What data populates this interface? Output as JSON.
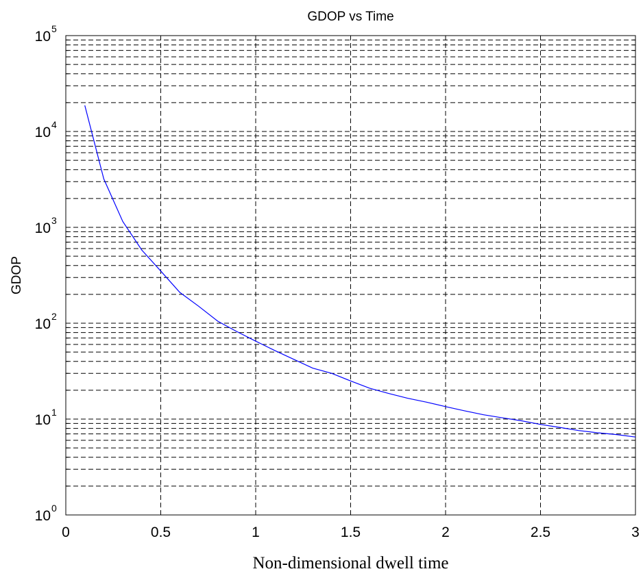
{
  "chart_data": {
    "type": "line",
    "title": "GDOP vs Time",
    "xlabel": "Non-dimensional dwell time",
    "ylabel": "GDOP",
    "xlim": [
      0,
      3
    ],
    "ylim": [
      1,
      100000
    ],
    "yscale": "log",
    "grid": true,
    "x_ticks": [
      "0",
      "0.5",
      "1",
      "1.5",
      "2",
      "2.5",
      "3"
    ],
    "y_ticks": [
      {
        "base": "10",
        "exp": "0"
      },
      {
        "base": "10",
        "exp": "1"
      },
      {
        "base": "10",
        "exp": "2"
      },
      {
        "base": "10",
        "exp": "3"
      },
      {
        "base": "10",
        "exp": "4"
      },
      {
        "base": "10",
        "exp": "5"
      }
    ],
    "series": [
      {
        "color": "#0000ff",
        "x": [
          0.1,
          0.2,
          0.3,
          0.4,
          0.5,
          0.6,
          0.7,
          0.8,
          0.9,
          1.0,
          1.1,
          1.2,
          1.3,
          1.4,
          1.5,
          1.6,
          1.7,
          1.8,
          1.9,
          2.0,
          2.1,
          2.2,
          2.3,
          2.4,
          2.5,
          2.6,
          2.7,
          2.8,
          2.9,
          3.0
        ],
        "y": [
          18700,
          3200,
          1150,
          580,
          350,
          210,
          150,
          105,
          82,
          65,
          52,
          42,
          34,
          30,
          25,
          21,
          18.5,
          16.5,
          15,
          13.5,
          12.2,
          11.1,
          10.3,
          9.6,
          8.8,
          8.2,
          7.6,
          7.2,
          6.9,
          6.5
        ]
      }
    ]
  }
}
